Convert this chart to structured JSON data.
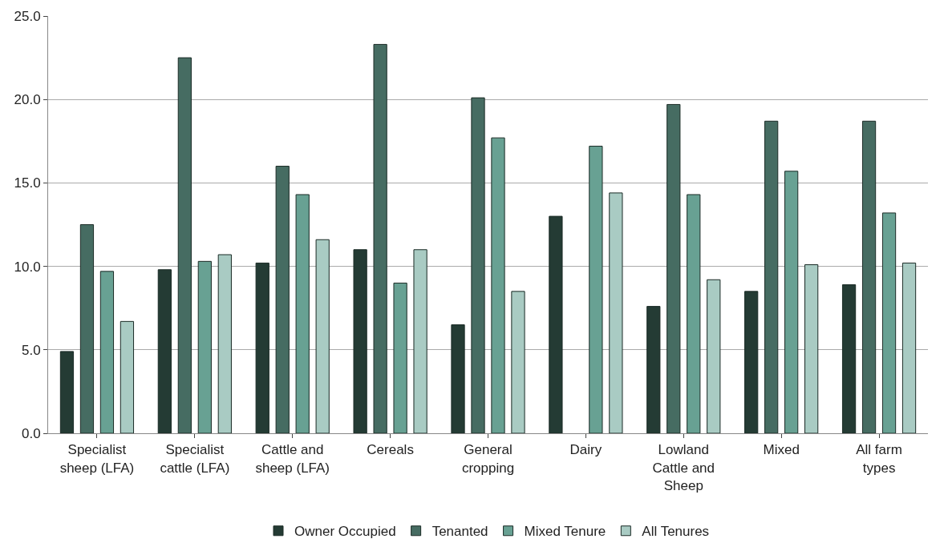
{
  "chart_data": {
    "type": "bar",
    "categories": [
      "Specialist sheep (LFA)",
      "Specialist cattle (LFA)",
      "Cattle and sheep (LFA)",
      "Cereals",
      "General cropping",
      "Dairy",
      "Lowland Cattle and Sheep",
      "Mixed",
      "All farm types"
    ],
    "series": [
      {
        "name": "Owner Occupied",
        "color": "#243b34",
        "values": [
          4.9,
          9.8,
          10.2,
          11.0,
          6.5,
          13.0,
          7.6,
          8.5,
          8.9
        ]
      },
      {
        "name": "Tenanted",
        "color": "#466c62",
        "values": [
          12.5,
          22.5,
          16.0,
          23.3,
          20.1,
          null,
          19.7,
          18.7,
          18.7
        ]
      },
      {
        "name": "Mixed Tenure",
        "color": "#68a193",
        "values": [
          9.7,
          10.3,
          14.3,
          9.0,
          17.7,
          17.2,
          14.3,
          15.7,
          13.2
        ]
      },
      {
        "name": "All Tenures",
        "color": "#a9cbc3",
        "values": [
          6.7,
          10.7,
          11.6,
          11.0,
          8.5,
          14.4,
          9.2,
          10.1,
          10.2
        ]
      }
    ],
    "ylim": [
      0,
      25
    ],
    "yticks": [
      {
        "value": 0,
        "label": "0.0"
      },
      {
        "value": 5,
        "label": "5.0"
      },
      {
        "value": 10,
        "label": "10.0"
      },
      {
        "value": 15,
        "label": "15.0"
      },
      {
        "value": 20,
        "label": "20.0"
      },
      {
        "value": 25,
        "label": "25.0"
      }
    ],
    "grid": "y",
    "legend": "bottom"
  }
}
